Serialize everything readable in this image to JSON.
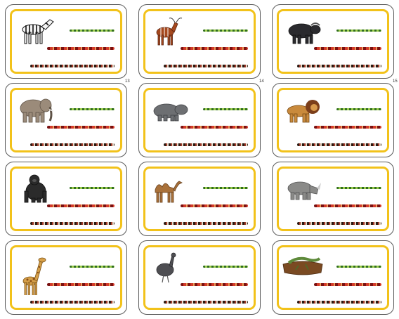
{
  "page_numbers": [
    "13",
    "14",
    "15"
  ],
  "cards": [
    {
      "animal": "zebra-icon"
    },
    {
      "animal": "bongo-antelope-icon"
    },
    {
      "animal": "buffalo-icon"
    },
    {
      "animal": "elephant-icon"
    },
    {
      "animal": "hippo-icon"
    },
    {
      "animal": "lion-icon"
    },
    {
      "animal": "gorilla-icon"
    },
    {
      "animal": "camel-icon"
    },
    {
      "animal": "rhino-icon"
    },
    {
      "animal": "giraffe-icon"
    },
    {
      "animal": "emu-icon"
    },
    {
      "animal": "lizard-on-log-icon"
    }
  ],
  "colors": {
    "frame": "#f2c21a",
    "border": "#5a5a5a",
    "snake_green": "#2f6d1e",
    "snake_red": "#d33a2a",
    "snake_dark": "#2b1a12"
  }
}
